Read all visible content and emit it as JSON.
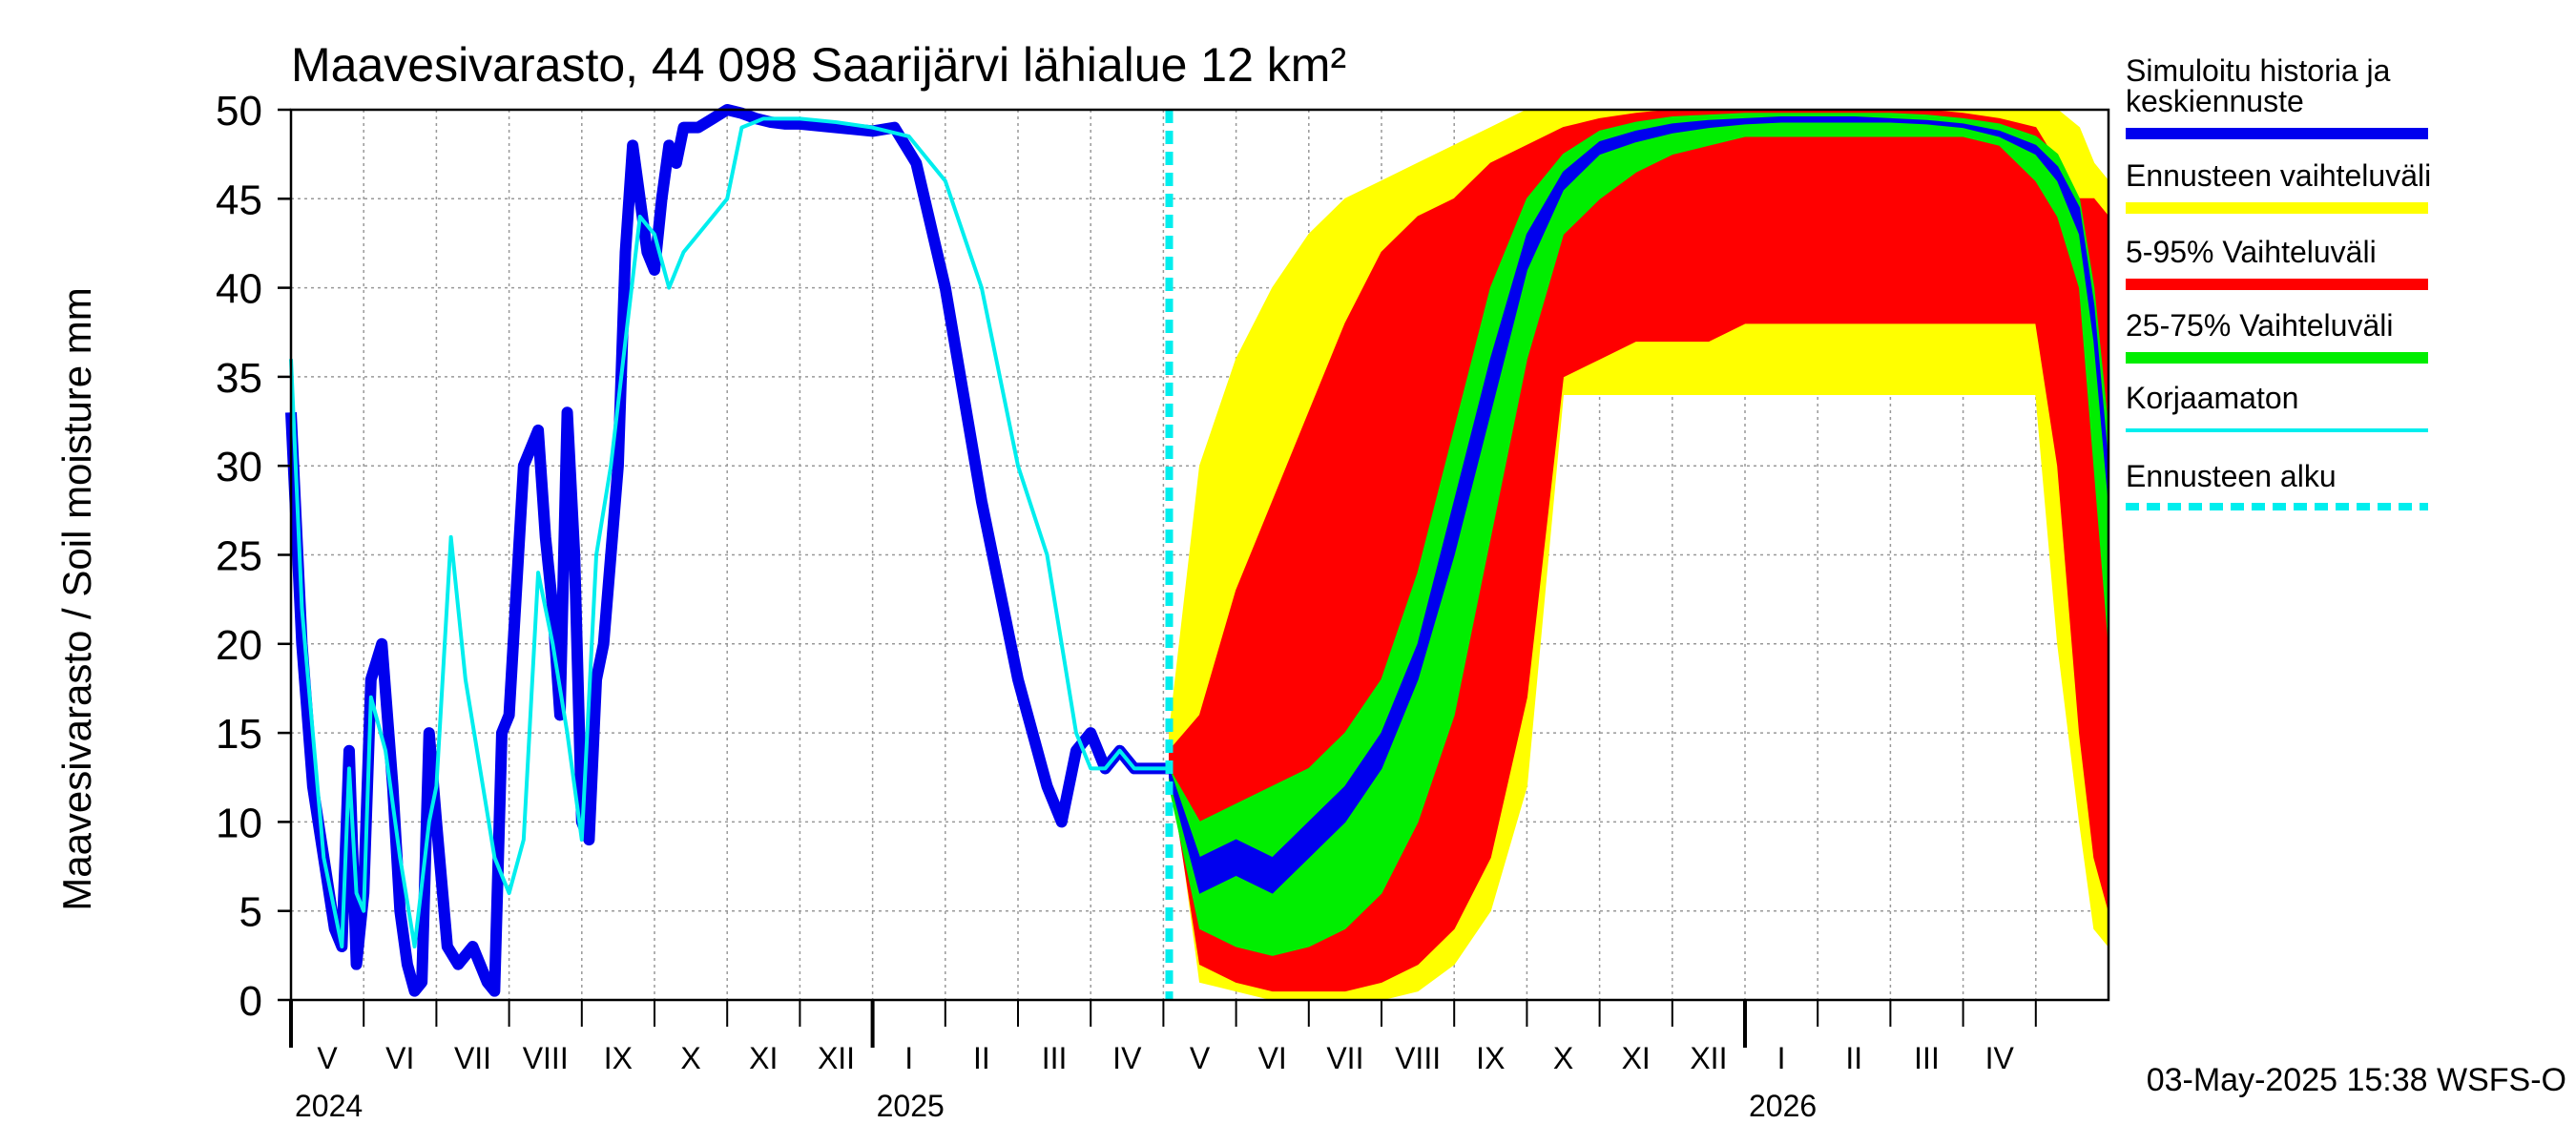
{
  "chart_data": {
    "type": "area",
    "title": "Maavesivarasto, 44 098 Saarijärvi lähialue 12 km²",
    "ylabel": "Maavesivarasto / Soil moisture   mm",
    "ylim": [
      0,
      50
    ],
    "yticks": [
      0,
      5,
      10,
      15,
      20,
      25,
      30,
      35,
      40,
      45,
      50
    ],
    "x_range_months": [
      0,
      25
    ],
    "month_labels": [
      "V",
      "VI",
      "VII",
      "VIII",
      "IX",
      "X",
      "XI",
      "XII",
      "I",
      "II",
      "III",
      "IV",
      "V",
      "VI",
      "VII",
      "VIII",
      "IX",
      "X",
      "XI",
      "XII",
      "I",
      "II",
      "III",
      "IV"
    ],
    "year_labels": [
      {
        "label": "2024",
        "month": 0
      },
      {
        "label": "2025",
        "month": 8
      },
      {
        "label": "2026",
        "month": 20
      }
    ],
    "forecast_start_month": 12.08,
    "footer": "03-May-2025 15:38 WSFS-O",
    "colors": {
      "simulated": "#0000ee",
      "range": "#ffff00",
      "p5_95": "#ff0000",
      "p25_75": "#00ee00",
      "uncorrected": "#00eeee",
      "forecast_start": "#00eeee"
    },
    "legend": [
      {
        "label": "Simuloitu historia ja keskiennuste",
        "color": "#0000ee",
        "style": "thick"
      },
      {
        "label": "Ennusteen vaihteluväli",
        "color": "#ffff00",
        "style": "thick"
      },
      {
        "label": "5-95% Vaihteluväli",
        "color": "#ff0000",
        "style": "thick"
      },
      {
        "label": "25-75% Vaihteluväli",
        "color": "#00ee00",
        "style": "thick"
      },
      {
        "label": "Korjaamaton",
        "color": "#00eeee",
        "style": "thin"
      },
      {
        "label": "Ennusteen alku",
        "color": "#00eeee",
        "style": "dashed"
      }
    ],
    "series": [
      {
        "name": "Simuloitu historia ja keskiennuste",
        "x": [
          0.0,
          0.15,
          0.3,
          0.45,
          0.6,
          0.7,
          0.8,
          0.9,
          1.0,
          1.1,
          1.25,
          1.4,
          1.5,
          1.6,
          1.7,
          1.8,
          1.9,
          2.0,
          2.15,
          2.3,
          2.5,
          2.6,
          2.7,
          2.8,
          2.9,
          3.0,
          3.2,
          3.4,
          3.5,
          3.6,
          3.7,
          3.8,
          3.9,
          4.0,
          4.1,
          4.2,
          4.3,
          4.4,
          4.5,
          4.6,
          4.7,
          4.8,
          4.9,
          5.0,
          5.1,
          5.2,
          5.3,
          5.4,
          5.6,
          5.8,
          6.0,
          6.2,
          6.4,
          6.6,
          6.8,
          7.0,
          7.5,
          8.0,
          8.3,
          8.6,
          9.0,
          9.5,
          10.0,
          10.4,
          10.6,
          10.8,
          11.0,
          11.2,
          11.4,
          11.6,
          11.8,
          11.95,
          12.08
        ],
        "values": [
          33,
          20,
          12,
          8,
          4,
          3,
          14,
          2,
          6,
          18,
          20,
          12,
          5,
          2,
          0.5,
          1,
          15,
          10,
          3,
          2,
          3,
          2,
          1,
          0.5,
          15,
          16,
          30,
          32,
          26,
          22,
          16,
          33,
          25,
          10,
          9,
          18,
          20,
          25,
          30,
          42,
          48,
          45,
          42,
          41,
          45,
          48,
          47,
          49,
          49,
          49.5,
          50,
          49.8,
          49.5,
          49.3,
          49.2,
          49.2,
          49.0,
          48.8,
          49.0,
          47.0,
          40,
          28,
          18,
          12,
          10,
          14,
          15,
          13,
          14,
          13,
          13,
          13,
          13
        ]
      },
      {
        "name": "Korjaamaton",
        "x": [
          0.0,
          0.15,
          0.3,
          0.45,
          0.6,
          0.7,
          0.8,
          0.9,
          1.0,
          1.1,
          1.3,
          1.5,
          1.7,
          1.9,
          2.0,
          2.2,
          2.4,
          2.6,
          2.8,
          3.0,
          3.2,
          3.4,
          3.6,
          3.8,
          4.0,
          4.2,
          4.4,
          4.6,
          4.8,
          5.0,
          5.2,
          5.4,
          5.6,
          5.8,
          6.0,
          6.2,
          6.5,
          6.8,
          7.0,
          7.5,
          8.0,
          8.5,
          9.0,
          9.5,
          10.0,
          10.4,
          10.6,
          10.8,
          11.0,
          11.2,
          11.4,
          11.6,
          11.8,
          12.0,
          12.08
        ],
        "values": [
          36,
          22,
          15,
          8,
          5,
          3,
          13,
          6,
          5,
          17,
          14,
          8,
          3,
          10,
          12,
          26,
          18,
          13,
          8,
          6,
          9,
          24,
          20,
          15,
          9,
          25,
          30,
          37,
          44,
          43,
          40,
          42,
          43,
          44,
          45,
          49,
          49.5,
          49.5,
          49.5,
          49.3,
          49.0,
          48.5,
          46,
          40,
          30,
          25,
          20,
          15,
          13,
          13,
          14,
          13,
          13,
          13,
          13
        ]
      }
    ],
    "bands": [
      {
        "name": "Ennusteen vaihteluväli",
        "x": [
          12.08,
          12.5,
          13,
          13.5,
          14,
          14.5,
          15,
          15.5,
          16,
          16.5,
          17,
          17.5,
          18,
          18.5,
          19,
          19.5,
          20,
          20.5,
          21,
          21.5,
          22,
          22.5,
          23,
          23.5,
          24,
          24.3,
          24.6,
          24.8,
          25
        ],
        "low": [
          14,
          1,
          0.5,
          0,
          0,
          0,
          0,
          0.5,
          2,
          5,
          12,
          34,
          34,
          34,
          34,
          34,
          34,
          34,
          34,
          34,
          34,
          34,
          34,
          34,
          34,
          20,
          10,
          4,
          3
        ],
        "high": [
          15,
          30,
          36,
          40,
          43,
          45,
          46,
          47,
          48,
          49,
          50,
          50,
          50,
          50,
          50,
          50,
          50,
          50,
          50,
          50,
          50,
          50,
          50,
          50,
          50,
          50,
          49,
          47,
          46
        ]
      },
      {
        "name": "5-95% Vaihteluväli",
        "x": [
          12.08,
          12.5,
          13,
          13.5,
          14,
          14.5,
          15,
          15.5,
          16,
          16.5,
          17,
          17.5,
          18,
          18.5,
          19,
          19.5,
          20,
          20.5,
          21,
          21.5,
          22,
          22.5,
          23,
          23.5,
          24,
          24.3,
          24.6,
          24.8,
          25
        ],
        "low": [
          13,
          2,
          1,
          0.5,
          0.5,
          0.5,
          1,
          2,
          4,
          8,
          17,
          35,
          36,
          37,
          37,
          37,
          38,
          38,
          38,
          38,
          38,
          38,
          38,
          38,
          38,
          30,
          15,
          8,
          5
        ],
        "high": [
          14,
          16,
          23,
          28,
          33,
          38,
          42,
          44,
          45,
          47,
          48,
          49,
          49.5,
          49.8,
          50,
          50,
          50,
          50,
          50,
          50,
          50,
          50,
          49.8,
          49.5,
          49,
          47,
          45,
          45,
          44
        ]
      },
      {
        "name": "25-75% Vaihteluväli",
        "x": [
          12.08,
          12.5,
          13,
          13.5,
          14,
          14.5,
          15,
          15.5,
          16,
          16.5,
          17,
          17.5,
          18,
          18.5,
          19,
          19.5,
          20,
          20.5,
          21,
          21.5,
          22,
          22.5,
          23,
          23.5,
          24,
          24.3,
          24.6,
          24.8,
          25
        ],
        "low": [
          12,
          4,
          3,
          2.5,
          3,
          4,
          6,
          10,
          16,
          26,
          36,
          43,
          45,
          46.5,
          47.5,
          48,
          48.5,
          48.5,
          48.5,
          48.5,
          48.5,
          48.5,
          48.5,
          48,
          46,
          44,
          40,
          30,
          20
        ],
        "high": [
          13,
          10,
          11,
          12,
          13,
          15,
          18,
          24,
          32,
          40,
          45,
          47.5,
          48.8,
          49.3,
          49.6,
          49.7,
          49.8,
          49.8,
          49.8,
          49.8,
          49.8,
          49.7,
          49.5,
          49.2,
          48.5,
          47.5,
          45,
          40,
          32
        ]
      },
      {
        "name": "Keskiennuste",
        "x": [
          12.08,
          12.5,
          13,
          13.5,
          14,
          14.5,
          15,
          15.5,
          16,
          16.5,
          17,
          17.5,
          18,
          18.5,
          19,
          19.5,
          20,
          20.5,
          21,
          21.5,
          22,
          22.5,
          23,
          23.5,
          24,
          24.3,
          24.6,
          24.8,
          25
        ],
        "low": [
          12.5,
          6,
          7,
          6,
          8,
          10,
          13,
          18,
          25,
          33,
          41,
          45.5,
          47.5,
          48.2,
          48.7,
          49,
          49.2,
          49.3,
          49.3,
          49.3,
          49.3,
          49.2,
          49,
          48.5,
          47.5,
          46,
          43,
          37,
          28
        ],
        "high": [
          13,
          8,
          9,
          8,
          10,
          12,
          15,
          20,
          28,
          36,
          43,
          46.5,
          48.2,
          48.8,
          49.2,
          49.4,
          49.5,
          49.6,
          49.6,
          49.6,
          49.5,
          49.4,
          49.2,
          48.8,
          48,
          46.8,
          44.5,
          39,
          30
        ]
      }
    ]
  }
}
